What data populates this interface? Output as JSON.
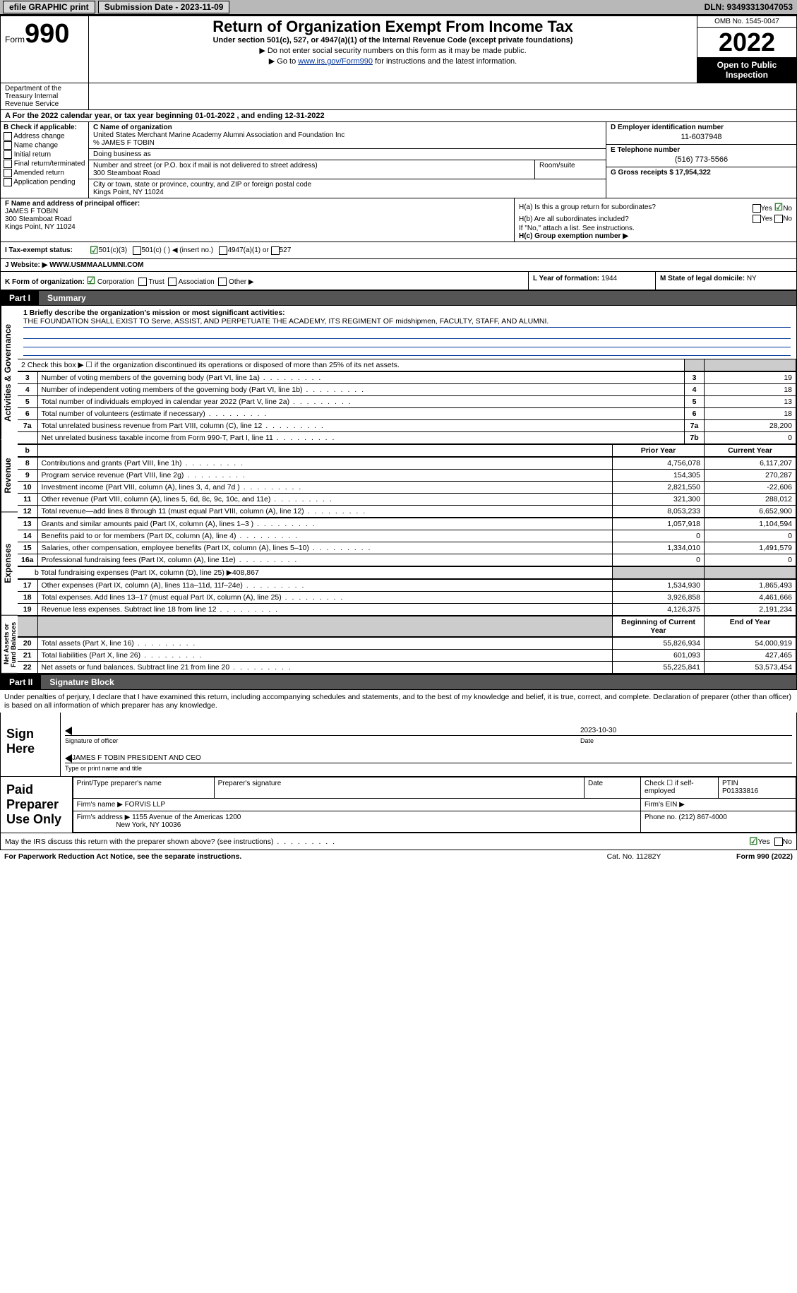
{
  "topbar": {
    "efile": "efile GRAPHIC print",
    "submission_label": "Submission Date - 2023-11-09",
    "dln_label": "DLN: 93493313047053"
  },
  "header": {
    "form_word": "Form",
    "form_num": "990",
    "title": "Return of Organization Exempt From Income Tax",
    "subtitle": "Under section 501(c), 527, or 4947(a)(1) of the Internal Revenue Code (except private foundations)",
    "arrow1": "▶ Do not enter social security numbers on this form as it may be made public.",
    "arrow2_pre": "▶ Go to ",
    "arrow2_link": "www.irs.gov/Form990",
    "arrow2_post": " for instructions and the latest information.",
    "omb": "OMB No. 1545-0047",
    "year": "2022",
    "open_public": "Open to Public Inspection",
    "dept": "Department of the Treasury Internal Revenue Service"
  },
  "line_a": "A For the 2022 calendar year, or tax year beginning 01-01-2022   , and ending 12-31-2022",
  "col_b": {
    "header": "B Check if applicable:",
    "opts": [
      "Address change",
      "Name change",
      "Initial return",
      "Final return/terminated",
      "Amended return",
      "Application pending"
    ]
  },
  "col_c": {
    "name_label": "C Name of organization",
    "name": "United States Merchant Marine Academy Alumni Association and Foundation Inc",
    "care_of": "% JAMES F TOBIN",
    "dba_label": "Doing business as",
    "street_label": "Number and street (or P.O. box if mail is not delivered to street address)",
    "street": "300 Steamboat Road",
    "room_label": "Room/suite",
    "city_label": "City or town, state or province, country, and ZIP or foreign postal code",
    "city": "Kings Point, NY  11024"
  },
  "col_d": {
    "ein_label": "D Employer identification number",
    "ein": "11-6037948",
    "phone_label": "E Telephone number",
    "phone": "(516) 773-5566",
    "gross_label": "G Gross receipts $",
    "gross": "17,954,322"
  },
  "row_f": {
    "label": "F Name and address of principal officer:",
    "name": "JAMES F TOBIN",
    "addr1": "300 Steamboat Road",
    "addr2": "Kings Point, NY  11024"
  },
  "row_h": {
    "ha_label": "H(a)  Is this a group return for subordinates?",
    "hb_label": "H(b)  Are all subordinates included?",
    "hb_note": "If \"No,\" attach a list. See instructions.",
    "hc_label": "H(c)  Group exemption number ▶",
    "yes": "Yes",
    "no": "No"
  },
  "row_i": {
    "label": "I   Tax-exempt status:",
    "opt1": "501(c)(3)",
    "opt2": "501(c) (  ) ◀ (insert no.)",
    "opt3": "4947(a)(1) or",
    "opt4": "527"
  },
  "row_j": {
    "label": "J   Website: ▶",
    "value": "WWW.USMMAALUMNI.COM"
  },
  "row_k": {
    "label": "K Form of organization:",
    "opts": [
      "Corporation",
      "Trust",
      "Association",
      "Other ▶"
    ],
    "year_label": "L Year of formation:",
    "year": "1944",
    "state_label": "M State of legal domicile:",
    "state": "NY"
  },
  "part1": {
    "part_label": "Part I",
    "part_title": "Summary",
    "vert1": "Activities & Governance",
    "vert2": "Revenue",
    "vert3": "Expenses",
    "vert4": "Net Assets or Fund Balances",
    "line1_label": "1   Briefly describe the organization's mission or most significant activities:",
    "line1_text": "THE FOUNDATION SHALL EXIST TO Serve, ASSIST, AND PERPETUATE THE ACADEMY, ITS REGIMENT OF midshipmen, FACULTY, STAFF, AND ALUMNI.",
    "line2": "2   Check this box ▶ ☐  if the organization discontinued its operations or disposed of more than 25% of its net assets.",
    "rows_a": [
      {
        "n": "3",
        "desc": "Number of voting members of the governing body (Part VI, line 1a)",
        "box": "3",
        "val": "19"
      },
      {
        "n": "4",
        "desc": "Number of independent voting members of the governing body (Part VI, line 1b)",
        "box": "4",
        "val": "18"
      },
      {
        "n": "5",
        "desc": "Total number of individuals employed in calendar year 2022 (Part V, line 2a)",
        "box": "5",
        "val": "13"
      },
      {
        "n": "6",
        "desc": "Total number of volunteers (estimate if necessary)",
        "box": "6",
        "val": "18"
      },
      {
        "n": "7a",
        "desc": "Total unrelated business revenue from Part VIII, column (C), line 12",
        "box": "7a",
        "val": "28,200"
      },
      {
        "n": "",
        "desc": "Net unrelated business taxable income from Form 990-T, Part I, line 11",
        "box": "7b",
        "val": "0"
      }
    ],
    "col_headers": {
      "b": "b",
      "prior": "Prior Year",
      "current": "Current Year"
    },
    "rows_rev": [
      {
        "n": "8",
        "desc": "Contributions and grants (Part VIII, line 1h)",
        "prior": "4,756,078",
        "cur": "6,117,207"
      },
      {
        "n": "9",
        "desc": "Program service revenue (Part VIII, line 2g)",
        "prior": "154,305",
        "cur": "270,287"
      },
      {
        "n": "10",
        "desc": "Investment income (Part VIII, column (A), lines 3, 4, and 7d )",
        "prior": "2,821,550",
        "cur": "-22,606"
      },
      {
        "n": "11",
        "desc": "Other revenue (Part VIII, column (A), lines 5, 6d, 8c, 9c, 10c, and 11e)",
        "prior": "321,300",
        "cur": "288,012"
      },
      {
        "n": "12",
        "desc": "Total revenue—add lines 8 through 11 (must equal Part VIII, column (A), line 12)",
        "prior": "8,053,233",
        "cur": "6,652,900"
      }
    ],
    "rows_exp": [
      {
        "n": "13",
        "desc": "Grants and similar amounts paid (Part IX, column (A), lines 1–3 )",
        "prior": "1,057,918",
        "cur": "1,104,594"
      },
      {
        "n": "14",
        "desc": "Benefits paid to or for members (Part IX, column (A), line 4)",
        "prior": "0",
        "cur": "0"
      },
      {
        "n": "15",
        "desc": "Salaries, other compensation, employee benefits (Part IX, column (A), lines 5–10)",
        "prior": "1,334,010",
        "cur": "1,491,579"
      },
      {
        "n": "16a",
        "desc": "Professional fundraising fees (Part IX, column (A), line 11e)",
        "prior": "0",
        "cur": "0"
      }
    ],
    "line_b": "b  Total fundraising expenses (Part IX, column (D), line 25) ▶408,867",
    "rows_exp2": [
      {
        "n": "17",
        "desc": "Other expenses (Part IX, column (A), lines 11a–11d, 11f–24e)",
        "prior": "1,534,930",
        "cur": "1,865,493"
      },
      {
        "n": "18",
        "desc": "Total expenses. Add lines 13–17 (must equal Part IX, column (A), line 25)",
        "prior": "3,926,858",
        "cur": "4,461,666"
      },
      {
        "n": "19",
        "desc": "Revenue less expenses. Subtract line 18 from line 12",
        "prior": "4,126,375",
        "cur": "2,191,234"
      }
    ],
    "net_headers": {
      "begin": "Beginning of Current Year",
      "end": "End of Year"
    },
    "rows_net": [
      {
        "n": "20",
        "desc": "Total assets (Part X, line 16)",
        "prior": "55,826,934",
        "cur": "54,000,919"
      },
      {
        "n": "21",
        "desc": "Total liabilities (Part X, line 26)",
        "prior": "601,093",
        "cur": "427,465"
      },
      {
        "n": "22",
        "desc": "Net assets or fund balances. Subtract line 21 from line 20",
        "prior": "55,225,841",
        "cur": "53,573,454"
      }
    ]
  },
  "part2": {
    "part_label": "Part II",
    "part_title": "Signature Block",
    "declaration": "Under penalties of perjury, I declare that I have examined this return, including accompanying schedules and statements, and to the best of my knowledge and belief, it is true, correct, and complete. Declaration of preparer (other than officer) is based on all information of which preparer has any knowledge.",
    "sign_here": "Sign Here",
    "sig_officer": "Signature of officer",
    "sig_date_val": "2023-10-30",
    "date_lbl": "Date",
    "name_title": "JAMES F TOBIN  PRESIDENT AND CEO",
    "type_name": "Type or print name and title",
    "paid_label": "Paid Preparer Use Only",
    "prep_name_lbl": "Print/Type preparer's name",
    "prep_sig_lbl": "Preparer's signature",
    "prep_date_lbl": "Date",
    "check_if": "Check ☐ if self-employed",
    "ptin_lbl": "PTIN",
    "ptin": "P01333816",
    "firm_name_lbl": "Firm's name    ▶",
    "firm_name": "FORVIS LLP",
    "firm_ein_lbl": "Firm's EIN ▶",
    "firm_addr_lbl": "Firm's address ▶",
    "firm_addr1": "1155 Avenue of the Americas 1200",
    "firm_addr2": "New York, NY  10036",
    "phone_lbl": "Phone no.",
    "phone": "(212) 867-4000"
  },
  "bottom": {
    "q": "May the IRS discuss this return with the preparer shown above? (see instructions)",
    "yes": "Yes",
    "no": "No"
  },
  "footer": {
    "left": "For Paperwork Reduction Act Notice, see the separate instructions.",
    "mid": "Cat. No. 11282Y",
    "right": "Form 990 (2022)"
  }
}
